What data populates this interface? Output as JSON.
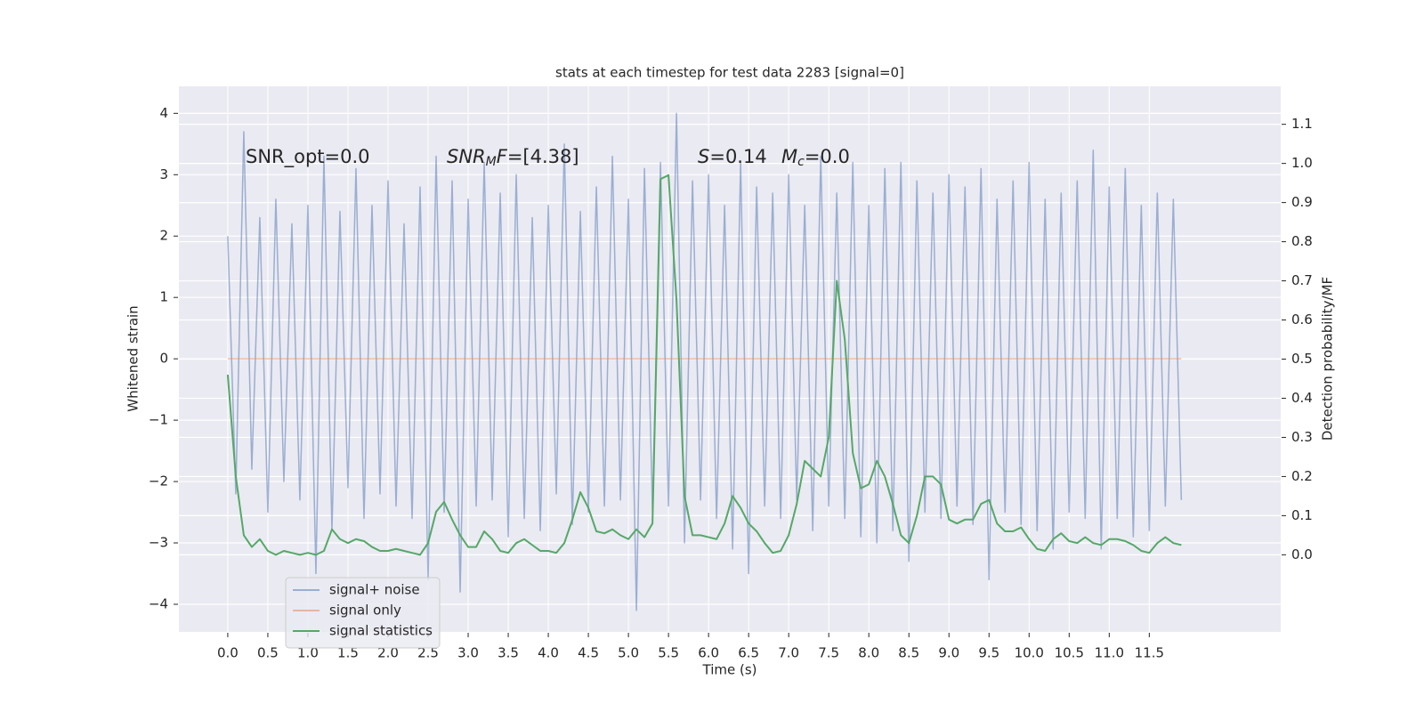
{
  "chart_data": {
    "type": "line",
    "title": "stats at each timestep for test data 2283 [signal=0]",
    "xlabel": "Time (s)",
    "ylabel": "Whitened strain",
    "y2label": "Detection probability/MF",
    "x": [
      0.0,
      0.1,
      0.2,
      0.3,
      0.4,
      0.5,
      0.6,
      0.7,
      0.8,
      0.9,
      1.0,
      1.1,
      1.2,
      1.3,
      1.4,
      1.5,
      1.6,
      1.7,
      1.8,
      1.9,
      2.0,
      2.1,
      2.2,
      2.3,
      2.4,
      2.5,
      2.6,
      2.7,
      2.8,
      2.9,
      3.0,
      3.1,
      3.2,
      3.3,
      3.4,
      3.5,
      3.6,
      3.7,
      3.8,
      3.9,
      4.0,
      4.1,
      4.2,
      4.3,
      4.4,
      4.5,
      4.6,
      4.7,
      4.8,
      4.9,
      5.0,
      5.1,
      5.2,
      5.3,
      5.4,
      5.5,
      5.6,
      5.7,
      5.8,
      5.9,
      6.0,
      6.1,
      6.2,
      6.3,
      6.4,
      6.5,
      6.6,
      6.7,
      6.8,
      6.9,
      7.0,
      7.1,
      7.2,
      7.3,
      7.4,
      7.5,
      7.6,
      7.7,
      7.8,
      7.9,
      8.0,
      8.1,
      8.2,
      8.3,
      8.4,
      8.5,
      8.6,
      8.7,
      8.8,
      8.9,
      9.0,
      9.1,
      9.2,
      9.3,
      9.4,
      9.5,
      9.6,
      9.7,
      9.8,
      9.9,
      10.0,
      10.1,
      10.2,
      10.3,
      10.4,
      10.5,
      10.6,
      10.7,
      10.8,
      10.9,
      11.0,
      11.1,
      11.2,
      11.3,
      11.4,
      11.5,
      11.6,
      11.7,
      11.8,
      11.9
    ],
    "series": [
      {
        "name": "signal+ noise",
        "color": "#4c72b0",
        "opacity": 0.5,
        "axis": "y",
        "values": [
          2.0,
          -2.2,
          3.7,
          -1.8,
          2.3,
          -2.5,
          2.6,
          -2.0,
          2.2,
          -2.3,
          2.5,
          -3.5,
          3.3,
          -2.8,
          2.4,
          -2.1,
          3.1,
          -2.6,
          2.5,
          -2.2,
          2.9,
          -2.4,
          2.2,
          -2.6,
          2.8,
          -3.6,
          3.3,
          -2.5,
          2.9,
          -3.8,
          2.6,
          -2.4,
          3.2,
          -2.3,
          2.7,
          -2.9,
          3.0,
          -2.6,
          2.3,
          -2.8,
          2.5,
          -2.2,
          3.5,
          -2.7,
          2.4,
          -2.5,
          2.8,
          -2.4,
          3.3,
          -2.3,
          2.6,
          -4.1,
          3.1,
          -2.5,
          3.2,
          -2.4,
          4.0,
          -3.0,
          2.9,
          -2.3,
          3.0,
          -2.6,
          2.5,
          -3.1,
          3.2,
          -3.5,
          2.8,
          -2.4,
          2.7,
          -2.6,
          3.0,
          -2.3,
          2.5,
          -2.8,
          3.3,
          -2.4,
          2.7,
          -2.6,
          3.2,
          -2.9,
          2.5,
          -3.0,
          3.1,
          -2.8,
          3.2,
          -3.3,
          2.9,
          -2.5,
          2.7,
          -2.6,
          3.0,
          -2.4,
          2.8,
          -2.7,
          3.1,
          -3.6,
          2.6,
          -2.5,
          2.9,
          -2.7,
          3.2,
          -2.8,
          2.6,
          -3.1,
          2.7,
          -2.5,
          2.9,
          -2.6,
          3.4,
          -3.1,
          2.8,
          -2.6,
          3.1,
          -2.9,
          2.5,
          -2.8,
          2.7,
          -2.4,
          2.6,
          -2.3
        ]
      },
      {
        "name": "signal only",
        "color": "#dd8452",
        "opacity": 0.5,
        "axis": "y",
        "x": [
          0.0,
          11.9
        ],
        "values": [
          0,
          0
        ]
      },
      {
        "name": "signal statistics",
        "color": "#55a868",
        "opacity": 1,
        "axis": "y2",
        "values": [
          0.46,
          0.2,
          0.05,
          0.02,
          0.04,
          0.01,
          0.0,
          0.01,
          0.005,
          0.0,
          0.005,
          0.0,
          0.01,
          0.065,
          0.04,
          0.03,
          0.04,
          0.035,
          0.02,
          0.01,
          0.01,
          0.015,
          0.01,
          0.005,
          0.0,
          0.03,
          0.11,
          0.135,
          0.09,
          0.05,
          0.02,
          0.02,
          0.06,
          0.04,
          0.01,
          0.005,
          0.03,
          0.04,
          0.025,
          0.01,
          0.01,
          0.005,
          0.03,
          0.09,
          0.16,
          0.12,
          0.06,
          0.055,
          0.065,
          0.05,
          0.04,
          0.065,
          0.045,
          0.08,
          0.96,
          0.97,
          0.65,
          0.15,
          0.05,
          0.05,
          0.045,
          0.04,
          0.08,
          0.15,
          0.12,
          0.08,
          0.06,
          0.03,
          0.005,
          0.01,
          0.05,
          0.13,
          0.24,
          0.22,
          0.2,
          0.3,
          0.7,
          0.55,
          0.26,
          0.17,
          0.18,
          0.24,
          0.2,
          0.13,
          0.05,
          0.03,
          0.1,
          0.2,
          0.2,
          0.18,
          0.09,
          0.08,
          0.09,
          0.09,
          0.13,
          0.14,
          0.08,
          0.06,
          0.06,
          0.07,
          0.04,
          0.015,
          0.01,
          0.04,
          0.055,
          0.035,
          0.03,
          0.045,
          0.03,
          0.025,
          0.04,
          0.04,
          0.035,
          0.025,
          0.01,
          0.005,
          0.03,
          0.045,
          0.03,
          0.025
        ]
      }
    ],
    "xlim": [
      -0.61,
      13.14
    ],
    "xticks": [
      {
        "value": 0,
        "label": "0.0"
      },
      0.5,
      {
        "value": 1,
        "label": "1.0"
      },
      1.5,
      {
        "value": 2,
        "label": "2.0"
      },
      2.5,
      {
        "value": 3,
        "label": "3.0"
      },
      3.5,
      {
        "value": 4,
        "label": "4.0"
      },
      4.5,
      {
        "value": 5,
        "label": "5.0"
      },
      5.5,
      {
        "value": 6,
        "label": "6.0"
      },
      6.5,
      {
        "value": 7,
        "label": "7.0"
      },
      7.5,
      {
        "value": 8,
        "label": "8.0"
      },
      8.5,
      {
        "value": 9,
        "label": "9.0"
      },
      9.5,
      {
        "value": 10,
        "label": "10.0"
      },
      10.5,
      {
        "value": 11,
        "label": "11.0"
      },
      11.5
    ],
    "ylim": [
      -4.45,
      4.44
    ],
    "yticks": [
      {
        "value": -4,
        "label": "−4"
      },
      {
        "value": -3,
        "label": "−3"
      },
      {
        "value": -2,
        "label": "−2"
      },
      {
        "value": -1,
        "label": "−1"
      },
      0,
      1,
      2,
      3,
      4
    ],
    "y2lim": [
      -0.197,
      1.197
    ],
    "y2ticks": [
      {
        "value": 0,
        "label": "0.0"
      },
      0.1,
      0.2,
      0.3,
      0.4,
      0.5,
      0.6,
      0.7,
      0.8,
      0.9,
      {
        "value": 1,
        "label": "1.0"
      },
      1.1
    ],
    "grid": true,
    "legend": "lower left",
    "annotations": [
      [
        {
          "text": "SNR_opt=0.0"
        }
      ],
      [
        {
          "text": "SNR",
          "style": "italic"
        },
        {
          "text": "M",
          "style": "italic-sub"
        },
        {
          "text": "F",
          "style": "italic"
        },
        {
          "text": "=[4.38]"
        }
      ],
      [
        {
          "text": "S",
          "style": "italic"
        },
        {
          "text": "=0.14"
        }
      ],
      [
        {
          "text": "M",
          "style": "italic"
        },
        {
          "text": "c",
          "style": "italic-sub"
        },
        {
          "text": "=0.0"
        }
      ]
    ]
  }
}
